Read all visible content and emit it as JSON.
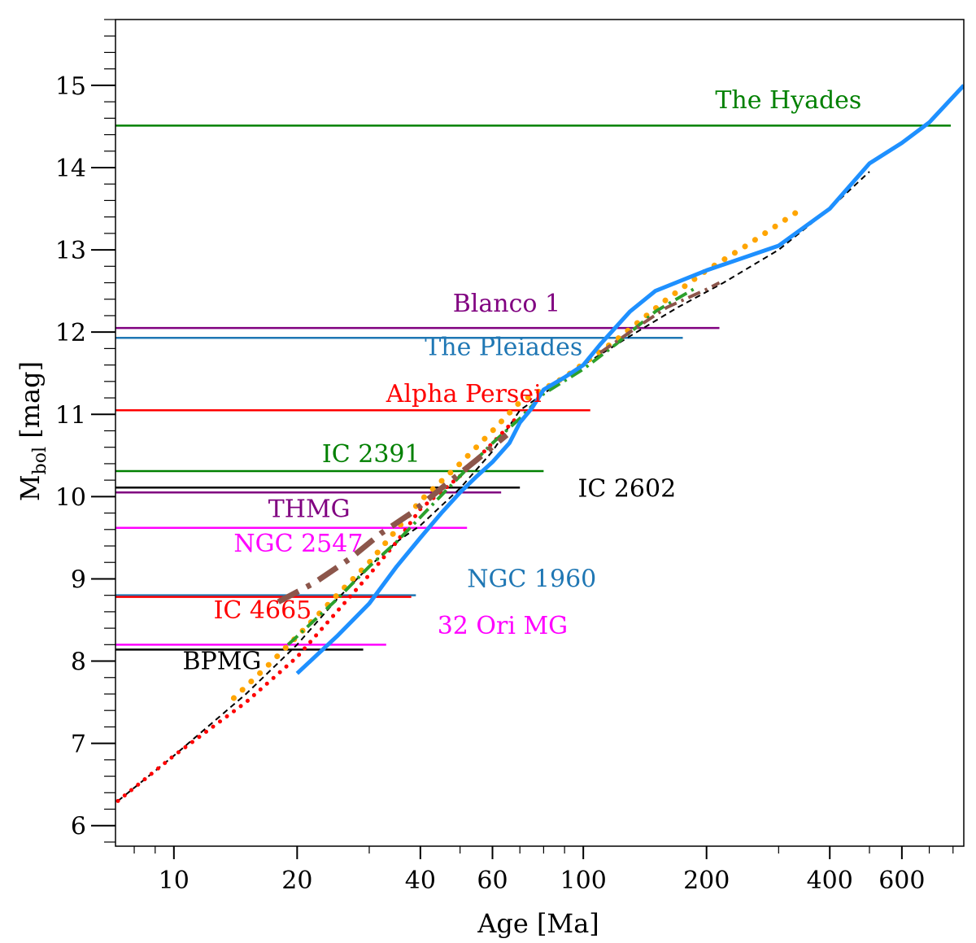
{
  "chart_data": {
    "type": "line",
    "xlabel": "Age [Ma]",
    "ylabel_main": "M",
    "ylabel_sub": "bol",
    "ylabel_unit": " [mag]",
    "xscale": "log",
    "xlim": [
      7.2,
      850
    ],
    "ylim": [
      5.75,
      15.8
    ],
    "xticks": [
      10,
      20,
      40,
      60,
      100,
      200,
      400,
      600
    ],
    "xtick_labels": [
      "10",
      "20",
      "40",
      "60",
      "100",
      "200",
      "400",
      "600"
    ],
    "yticks": [
      6,
      7,
      8,
      9,
      10,
      11,
      12,
      13,
      14,
      15
    ],
    "ytick_labels": [
      "6",
      "7",
      "8",
      "9",
      "10",
      "11",
      "12",
      "13",
      "14",
      "15"
    ],
    "clusters": [
      {
        "name": "The Hyades",
        "mbol": 14.51,
        "age_end": 790,
        "color": "#008000",
        "label_at": [
          210,
          14.72
        ]
      },
      {
        "name": "Blanco 1",
        "mbol": 12.05,
        "age_end": 215,
        "color": "#800080",
        "label_at": [
          48,
          12.25
        ]
      },
      {
        "name": "The Pleiades",
        "mbol": 11.93,
        "age_end": 175,
        "color": "#1f77b4",
        "label_at": [
          41,
          11.72
        ]
      },
      {
        "name": "Alpha Persei",
        "mbol": 11.05,
        "age_end": 104,
        "color": "#ff0000",
        "label_at": [
          33,
          11.15
        ]
      },
      {
        "name": "IC 2391",
        "mbol": 10.31,
        "age_end": 80,
        "color": "#008000",
        "label_at": [
          23,
          10.42
        ]
      },
      {
        "name": "IC 2602",
        "mbol": 10.11,
        "age_end": 70,
        "color": "#000000",
        "label_at": [
          97,
          10.0
        ]
      },
      {
        "name": "THMG",
        "mbol": 10.05,
        "age_end": 63,
        "color": "#800080",
        "label_at": [
          17,
          9.75
        ]
      },
      {
        "name": "NGC 2547",
        "mbol": 9.62,
        "age_end": 52,
        "color": "#ff00ff",
        "label_at": [
          14,
          9.33
        ]
      },
      {
        "name": "NGC 1960",
        "mbol": 8.8,
        "age_end": 39,
        "color": "#1f77b4",
        "label_at": [
          52,
          8.9
        ]
      },
      {
        "name": "IC 4665",
        "mbol": 8.78,
        "age_end": 38,
        "color": "#ff0000",
        "label_at": [
          12.5,
          8.52
        ]
      },
      {
        "name": "32 Ori MG",
        "mbol": 8.2,
        "age_end": 33,
        "color": "#ff00ff",
        "label_at": [
          44,
          8.33
        ]
      },
      {
        "name": "BPMG",
        "mbol": 8.14,
        "age_end": 29,
        "color": "#000000",
        "label_at": [
          10.5,
          7.9
        ]
      }
    ],
    "series": [
      {
        "style": "dashed",
        "color": "#000000",
        "width": 2,
        "x": [
          7.3,
          10,
          15,
          20,
          25,
          30,
          35,
          40,
          50,
          60,
          70,
          80,
          100,
          130,
          170,
          220,
          300,
          400,
          500
        ],
        "y": [
          6.3,
          6.85,
          7.6,
          8.2,
          8.75,
          9.15,
          9.45,
          9.65,
          10.1,
          10.55,
          11.05,
          11.25,
          11.6,
          11.95,
          12.3,
          12.6,
          13.0,
          13.5,
          13.95
        ]
      },
      {
        "style": "dotted",
        "color": "#ff0000",
        "width": 5,
        "x": [
          7.3,
          10,
          15,
          20,
          25,
          30,
          35,
          40,
          50,
          60,
          70
        ],
        "y": [
          6.3,
          6.85,
          7.5,
          8.05,
          8.6,
          9.05,
          9.45,
          9.85,
          10.25,
          10.65,
          11.0
        ]
      },
      {
        "style": "dotted",
        "color": "#ffa500",
        "width": 7,
        "x": [
          14,
          17,
          20,
          25,
          30,
          35,
          40,
          50,
          60,
          70,
          90,
          120,
          160,
          200,
          250,
          330
        ],
        "y": [
          7.55,
          7.95,
          8.3,
          8.8,
          9.2,
          9.6,
          9.95,
          10.4,
          10.8,
          11.15,
          11.45,
          11.9,
          12.4,
          12.75,
          13.05,
          13.45
        ]
      },
      {
        "style": "dashdot",
        "color": "#2ca02c",
        "width": 4,
        "x": [
          19,
          20,
          25,
          30,
          35,
          40,
          50,
          60,
          70,
          80,
          100,
          120,
          150,
          190
        ],
        "y": [
          8.2,
          8.3,
          8.75,
          9.15,
          9.45,
          9.75,
          10.25,
          10.65,
          10.95,
          11.25,
          11.55,
          11.85,
          12.25,
          12.55
        ]
      },
      {
        "style": "dashdot",
        "color": "#8c564b",
        "width": 7,
        "x": [
          18,
          22,
          27,
          32,
          38,
          45,
          55,
          65
        ],
        "y": [
          8.72,
          8.95,
          9.25,
          9.55,
          9.8,
          10.1,
          10.45,
          10.75
        ]
      },
      {
        "style": "dashdot",
        "color": "#8c564b",
        "width": 4,
        "x": [
          110,
          130,
          160,
          200,
          215
        ],
        "y": [
          11.75,
          12.0,
          12.3,
          12.52,
          12.6
        ]
      },
      {
        "style": "solid",
        "color": "#1e90ff",
        "width": 5,
        "x": [
          20,
          25,
          30,
          35,
          40,
          45,
          50,
          55,
          60,
          66,
          70,
          75,
          80,
          90,
          100,
          110,
          130,
          150,
          200,
          300,
          400,
          500,
          600,
          700,
          850
        ],
        "y": [
          7.85,
          8.3,
          8.7,
          9.15,
          9.5,
          9.8,
          10.05,
          10.25,
          10.42,
          10.65,
          10.9,
          11.08,
          11.3,
          11.45,
          11.6,
          11.85,
          12.25,
          12.5,
          12.75,
          13.05,
          13.5,
          14.05,
          14.3,
          14.55,
          15.0
        ]
      }
    ]
  }
}
